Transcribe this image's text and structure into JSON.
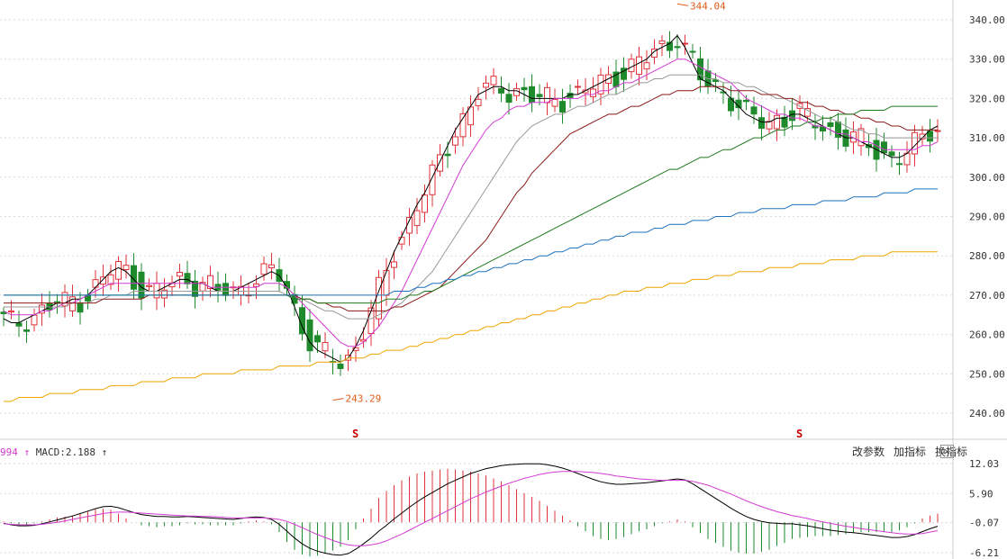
{
  "macd_header": {
    "prefix": "994",
    "macd_text": "MACD:2.188"
  },
  "toolbar": {
    "params_label": "改参数",
    "add_indicator_label": "加指标",
    "switch_indicator_label": "换指标",
    "close_label": "×"
  },
  "colors": {
    "up": "#e0333b",
    "down": "#1f8a2c",
    "ma5": "#000000",
    "ma10": "#d23ad2",
    "ma20": "#999999",
    "ma30": "#8b1a1a",
    "ma60": "#1f7a1f",
    "ma120": "#1e73be",
    "ma250": "#f0a500",
    "dif": "#000000",
    "dea": "#d23ad2",
    "grid": "#d9d9d9"
  },
  "chart_data": [
    {
      "type": "candlestick",
      "y_ticks": [
        "340.00",
        "330.00",
        "320.00",
        "310.00",
        "300.00",
        "290.00",
        "280.00",
        "270.00",
        "260.00",
        "250.00",
        "240.00"
      ],
      "ylim": [
        236,
        346
      ],
      "annotations": [
        {
          "text": "344.04",
          "index": 88,
          "value": 344.04
        },
        {
          "text": "243.29",
          "index": 43,
          "value": 243.29
        }
      ],
      "markers": [
        {
          "text": "S",
          "index": 46
        },
        {
          "text": "S",
          "index": 104
        }
      ],
      "ma_lines": [
        {
          "key": "ma5",
          "values": [
            264,
            263,
            263,
            264,
            265,
            266,
            267,
            268,
            268,
            269,
            269,
            270,
            272,
            274,
            276,
            277,
            276,
            274,
            272,
            271,
            271,
            272,
            273,
            274,
            274,
            273,
            273,
            272,
            271,
            271,
            271,
            272,
            273,
            274,
            275,
            276,
            275,
            272,
            267,
            262,
            258,
            256,
            255,
            254,
            253,
            254,
            257,
            261,
            266,
            271,
            276,
            281,
            285,
            289,
            293,
            296,
            300,
            304,
            308,
            312,
            315,
            318,
            321,
            322,
            323,
            323,
            322,
            322,
            321,
            320,
            320,
            320,
            320,
            320,
            321,
            321,
            322,
            323,
            324,
            325,
            326,
            327,
            328,
            329,
            330,
            332,
            333,
            334,
            336,
            333,
            329,
            325,
            324,
            323,
            322,
            320,
            318,
            316,
            315,
            314,
            314,
            315,
            315,
            316,
            316,
            315,
            314,
            313,
            312,
            311,
            310,
            310,
            309,
            308,
            307,
            306,
            305,
            305,
            306,
            308,
            310,
            312,
            313
          ]
        },
        {
          "key": "ma10",
          "values": [
            266,
            265,
            265,
            265,
            265,
            266,
            266,
            267,
            268,
            268,
            269,
            270,
            271,
            272,
            273,
            273,
            273,
            273,
            273,
            273,
            273,
            273,
            273,
            273,
            273,
            273,
            273,
            272,
            272,
            272,
            272,
            272,
            272,
            272,
            273,
            273,
            273,
            272,
            270,
            268,
            266,
            264,
            262,
            260,
            258,
            257,
            257,
            258,
            260,
            262,
            265,
            268,
            271,
            275,
            279,
            283,
            287,
            291,
            295,
            299,
            303,
            306,
            309,
            312,
            314,
            315,
            317,
            318,
            318,
            319,
            319,
            319,
            320,
            320,
            320,
            320,
            321,
            321,
            322,
            322,
            323,
            324,
            324,
            325,
            326,
            327,
            328,
            329,
            330,
            330,
            329,
            328,
            327,
            326,
            325,
            324,
            322,
            320,
            319,
            318,
            317,
            316,
            316,
            315,
            315,
            314,
            313,
            313,
            312,
            311,
            311,
            310,
            309,
            309,
            308,
            307,
            307,
            307,
            307,
            307,
            308,
            308,
            309
          ]
        },
        {
          "key": "ma20",
          "values": [
            267,
            267,
            267,
            267,
            267,
            267,
            267,
            267,
            267,
            268,
            268,
            268,
            269,
            269,
            270,
            270,
            270,
            271,
            271,
            271,
            271,
            271,
            271,
            271,
            271,
            271,
            271,
            271,
            271,
            271,
            271,
            271,
            271,
            271,
            271,
            271,
            271,
            270,
            270,
            269,
            268,
            267,
            266,
            266,
            265,
            264,
            264,
            264,
            264,
            265,
            266,
            267,
            268,
            270,
            272,
            274,
            276,
            279,
            282,
            285,
            288,
            291,
            294,
            297,
            300,
            303,
            306,
            309,
            311,
            313,
            314,
            315,
            316,
            316,
            317,
            318,
            318,
            319,
            320,
            321,
            321,
            322,
            323,
            324,
            324,
            325,
            325,
            326,
            326,
            326,
            326,
            326,
            325,
            325,
            324,
            324,
            324,
            323,
            323,
            322,
            321,
            320,
            320,
            319,
            318,
            317,
            316,
            315,
            315,
            314,
            313,
            312,
            312,
            311,
            311,
            310,
            310,
            310,
            310,
            310,
            310,
            310,
            310
          ]
        },
        {
          "key": "ma30",
          "values": [
            268,
            268,
            268,
            268,
            268,
            268,
            268,
            268,
            268,
            268,
            268,
            268,
            268,
            269,
            269,
            269,
            269,
            269,
            269,
            270,
            270,
            270,
            270,
            270,
            270,
            270,
            270,
            270,
            270,
            270,
            270,
            270,
            270,
            270,
            270,
            270,
            270,
            270,
            270,
            269,
            269,
            268,
            268,
            267,
            267,
            266,
            266,
            266,
            266,
            266,
            266,
            267,
            267,
            268,
            269,
            270,
            271,
            272,
            274,
            276,
            278,
            280,
            282,
            284,
            287,
            290,
            293,
            296,
            298,
            301,
            303,
            305,
            307,
            309,
            311,
            312,
            313,
            314,
            315,
            316,
            316,
            317,
            318,
            318,
            319,
            320,
            321,
            321,
            322,
            322,
            322,
            323,
            323,
            323,
            323,
            322,
            322,
            322,
            322,
            321,
            321,
            321,
            320,
            320,
            319,
            319,
            318,
            318,
            317,
            317,
            316,
            316,
            315,
            315,
            314,
            314,
            313,
            313,
            312,
            312,
            312,
            312,
            312
          ]
        },
        {
          "key": "ma60",
          "values": [
            270,
            270,
            270,
            270,
            270,
            270,
            270,
            270,
            270,
            270,
            270,
            270,
            270,
            270,
            270,
            270,
            270,
            270,
            270,
            270,
            270,
            270,
            270,
            270,
            270,
            270,
            270,
            270,
            270,
            270,
            270,
            270,
            270,
            270,
            270,
            270,
            270,
            270,
            269,
            269,
            269,
            268,
            268,
            268,
            268,
            268,
            268,
            268,
            268,
            268,
            269,
            269,
            269,
            270,
            270,
            271,
            271,
            272,
            273,
            274,
            275,
            276,
            277,
            278,
            279,
            280,
            281,
            282,
            283,
            284,
            285,
            286,
            287,
            288,
            289,
            290,
            291,
            292,
            293,
            294,
            295,
            296,
            297,
            298,
            299,
            300,
            301,
            302,
            302,
            303,
            304,
            305,
            305,
            306,
            307,
            307,
            308,
            309,
            310,
            310,
            311,
            312,
            312,
            313,
            313,
            314,
            314,
            315,
            315,
            316,
            316,
            316,
            317,
            317,
            317,
            317,
            318,
            318,
            318,
            318,
            318,
            318,
            318
          ]
        },
        {
          "key": "ma120",
          "values": [
            270,
            270,
            270,
            270,
            270,
            270,
            270,
            270,
            270,
            270,
            270,
            270,
            270,
            270,
            270,
            270,
            270,
            270,
            270,
            270,
            270,
            270,
            270,
            270,
            270,
            270,
            270,
            270,
            270,
            270,
            270,
            270,
            270,
            270,
            270,
            270,
            270,
            270,
            270,
            270,
            270,
            270,
            270,
            270,
            270,
            270,
            270,
            270,
            270,
            270,
            270,
            271,
            271,
            271,
            272,
            272,
            273,
            273,
            274,
            274,
            275,
            275,
            276,
            276,
            277,
            277,
            278,
            278,
            279,
            279,
            280,
            280,
            281,
            281,
            282,
            282,
            283,
            283,
            284,
            284,
            285,
            285,
            286,
            286,
            286,
            287,
            287,
            288,
            288,
            288,
            289,
            289,
            289,
            290,
            290,
            290,
            291,
            291,
            291,
            292,
            292,
            292,
            292,
            293,
            293,
            293,
            293,
            294,
            294,
            294,
            294,
            295,
            295,
            295,
            295,
            296,
            296,
            296,
            296,
            297,
            297,
            297,
            297
          ]
        },
        {
          "key": "ma250",
          "values": [
            243,
            243,
            244,
            244,
            244,
            244,
            245,
            245,
            245,
            245,
            246,
            246,
            246,
            246,
            247,
            247,
            247,
            247,
            248,
            248,
            248,
            248,
            249,
            249,
            249,
            249,
            250,
            250,
            250,
            250,
            250,
            251,
            251,
            251,
            251,
            251,
            252,
            252,
            252,
            252,
            252,
            253,
            253,
            253,
            253,
            254,
            254,
            254,
            255,
            255,
            256,
            256,
            256,
            257,
            257,
            258,
            258,
            259,
            259,
            260,
            260,
            261,
            261,
            262,
            262,
            263,
            263,
            264,
            264,
            265,
            265,
            266,
            266,
            267,
            267,
            268,
            268,
            269,
            269,
            270,
            270,
            271,
            271,
            271,
            272,
            272,
            272,
            273,
            273,
            273,
            274,
            274,
            274,
            275,
            275,
            275,
            276,
            276,
            276,
            276,
            277,
            277,
            277,
            277,
            278,
            278,
            278,
            278,
            279,
            279,
            279,
            279,
            280,
            280,
            280,
            280,
            281,
            281,
            281,
            281,
            281,
            281,
            281
          ]
        }
      ]
    },
    {
      "type": "macd",
      "y_ticks": [
        "12.03",
        "5.90",
        "-0.07",
        "-6.21"
      ],
      "ylim": [
        -7.5,
        13.0
      ],
      "dif": [
        -0.2,
        -0.5,
        -0.7,
        -0.7,
        -0.6,
        -0.3,
        0.1,
        0.5,
        0.9,
        1.3,
        1.8,
        2.3,
        2.8,
        3.2,
        3.3,
        3.0,
        2.5,
        2.0,
        1.6,
        1.4,
        1.2,
        1.2,
        1.1,
        1.1,
        1.2,
        1.1,
        1.0,
        0.9,
        0.8,
        0.7,
        0.6,
        0.8,
        1.0,
        1.1,
        1.0,
        0.6,
        -0.4,
        -1.8,
        -3.2,
        -4.4,
        -5.3,
        -5.9,
        -6.3,
        -6.6,
        -6.7,
        -6.4,
        -5.5,
        -4.4,
        -3.2,
        -1.8,
        -0.6,
        0.7,
        1.9,
        3.1,
        4.2,
        5.2,
        6.1,
        7.0,
        7.9,
        8.6,
        9.3,
        10.0,
        10.5,
        11.0,
        11.3,
        11.6,
        11.8,
        11.9,
        12.0,
        12.0,
        12.0,
        11.8,
        11.5,
        11.1,
        10.6,
        10.0,
        9.4,
        8.8,
        8.3,
        8.0,
        7.8,
        7.8,
        7.9,
        8.0,
        8.1,
        8.3,
        8.5,
        8.7,
        8.9,
        8.7,
        7.9,
        6.9,
        5.9,
        4.9,
        3.9,
        2.9,
        2.0,
        1.2,
        0.6,
        0.2,
        -0.1,
        -0.2,
        -0.3,
        -0.3,
        -0.5,
        -0.7,
        -1.0,
        -1.3,
        -1.6,
        -1.8,
        -2.0,
        -2.1,
        -2.3,
        -2.5,
        -2.7,
        -2.9,
        -3.1,
        -3.1,
        -2.9,
        -2.5,
        -1.9,
        -1.3,
        -0.8
      ],
      "dea": [
        -0.3,
        -0.4,
        -0.5,
        -0.5,
        -0.5,
        -0.4,
        -0.2,
        0.0,
        0.3,
        0.6,
        0.9,
        1.2,
        1.5,
        1.8,
        2.0,
        2.1,
        2.1,
        2.0,
        1.9,
        1.8,
        1.7,
        1.6,
        1.5,
        1.4,
        1.3,
        1.3,
        1.2,
        1.2,
        1.1,
        1.0,
        0.9,
        0.9,
        0.9,
        0.9,
        0.9,
        0.8,
        0.6,
        0.2,
        -0.4,
        -1.1,
        -1.8,
        -2.5,
        -3.1,
        -3.7,
        -4.2,
        -4.6,
        -4.8,
        -4.8,
        -4.6,
        -4.3,
        -3.8,
        -3.1,
        -2.4,
        -1.6,
        -0.8,
        0.0,
        0.8,
        1.6,
        2.4,
        3.2,
        4.0,
        4.8,
        5.5,
        6.2,
        6.8,
        7.4,
        8.0,
        8.5,
        9.0,
        9.4,
        9.8,
        10.1,
        10.3,
        10.4,
        10.4,
        10.4,
        10.3,
        10.2,
        10.0,
        9.8,
        9.5,
        9.3,
        9.1,
        8.9,
        8.8,
        8.7,
        8.6,
        8.6,
        8.6,
        8.6,
        8.4,
        8.0,
        7.6,
        7.0,
        6.4,
        5.8,
        5.1,
        4.4,
        3.8,
        3.2,
        2.7,
        2.2,
        1.8,
        1.4,
        1.1,
        0.8,
        0.4,
        0.1,
        -0.2,
        -0.5,
        -0.8,
        -1.0,
        -1.3,
        -1.5,
        -1.7,
        -1.9,
        -2.1,
        -2.3,
        -2.4,
        -2.4,
        -2.3,
        -2.0,
        -1.7
      ]
    }
  ]
}
